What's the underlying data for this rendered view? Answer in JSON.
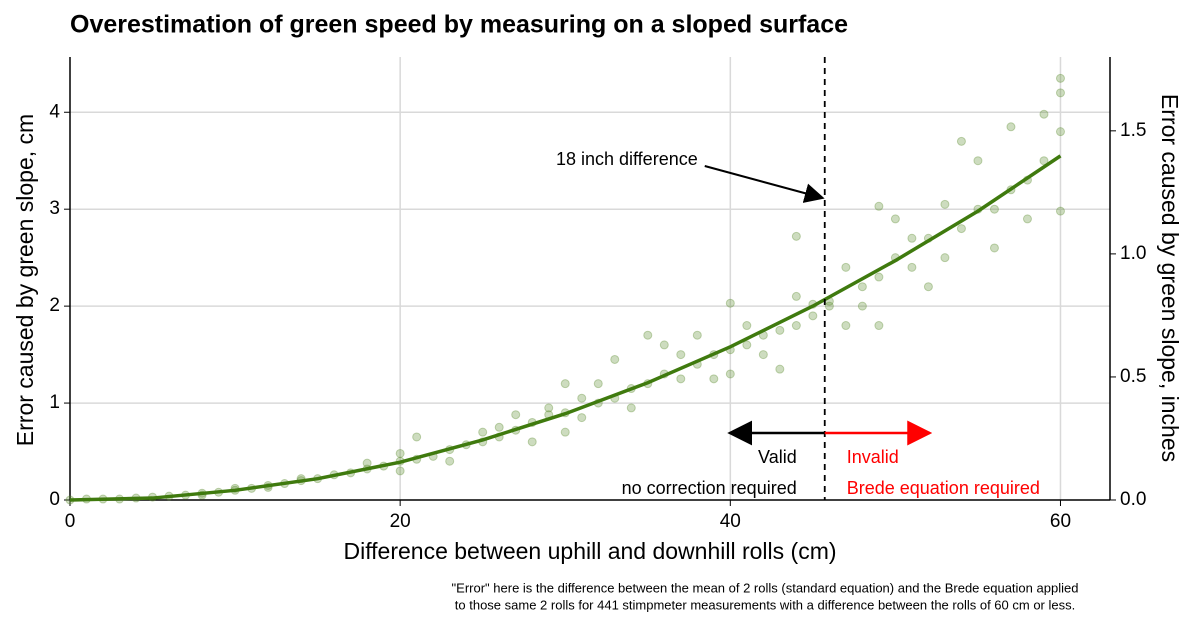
{
  "chart_data": {
    "type": "scatter",
    "title": "Overestimation of green speed by measuring on a sloped surface",
    "x_label": "Difference between uphill and downhill rolls (cm)",
    "y_label": "Error caused by green slope, cm",
    "y2_label": "Error caused by green slope, inches",
    "xlim": [
      0,
      63
    ],
    "ylim": [
      0,
      4.57
    ],
    "y2lim": [
      0,
      1.8
    ],
    "xticks": [
      0,
      20,
      40,
      60
    ],
    "yticks": [
      0,
      1,
      2,
      3,
      4
    ],
    "y2ticks": [
      {
        "value": 0,
        "label": "0.0"
      },
      0.5,
      {
        "value": 1,
        "label": "1.0"
      },
      1.5
    ],
    "grid": true,
    "point_color": "#5a8a2a",
    "line_color": "#3f7a0e",
    "points": {
      "x": [
        0,
        1,
        2,
        3,
        4,
        5,
        6,
        7,
        8,
        8,
        9,
        10,
        10,
        11,
        12,
        12,
        13,
        14,
        14,
        15,
        16,
        17,
        18,
        18,
        19,
        20,
        20,
        20,
        21,
        21,
        22,
        23,
        23,
        24,
        25,
        25,
        26,
        26,
        27,
        27,
        28,
        28,
        29,
        29,
        30,
        30,
        30,
        31,
        31,
        32,
        32,
        33,
        33,
        34,
        34,
        35,
        35,
        36,
        36,
        37,
        37,
        38,
        38,
        39,
        39,
        40,
        40,
        40,
        41,
        41,
        42,
        42,
        43,
        43,
        44,
        44,
        44,
        45,
        45,
        46,
        46,
        47,
        47,
        48,
        48,
        49,
        49,
        49,
        50,
        50,
        51,
        51,
        52,
        52,
        53,
        53,
        54,
        54,
        55,
        55,
        56,
        56,
        57,
        57,
        58,
        58,
        59,
        59,
        60,
        60,
        60,
        60
      ],
      "y": [
        0,
        0.01,
        0.01,
        0.01,
        0.02,
        0.03,
        0.04,
        0.05,
        0.07,
        0.05,
        0.08,
        0.1,
        0.12,
        0.12,
        0.15,
        0.13,
        0.17,
        0.2,
        0.22,
        0.22,
        0.26,
        0.28,
        0.32,
        0.38,
        0.35,
        0.4,
        0.48,
        0.3,
        0.42,
        0.65,
        0.45,
        0.52,
        0.4,
        0.57,
        0.6,
        0.7,
        0.65,
        0.75,
        0.72,
        0.88,
        0.8,
        0.6,
        0.88,
        0.95,
        0.9,
        1.2,
        0.7,
        1.05,
        0.85,
        1.0,
        1.2,
        1.05,
        1.45,
        1.15,
        0.95,
        1.2,
        1.7,
        1.3,
        1.6,
        1.25,
        1.5,
        1.4,
        1.7,
        1.5,
        1.25,
        1.55,
        2.03,
        1.3,
        1.6,
        1.8,
        1.7,
        1.5,
        1.75,
        1.35,
        1.8,
        2.1,
        2.72,
        1.9,
        2.02,
        2.0,
        2.05,
        1.8,
        2.4,
        2.2,
        2.0,
        2.3,
        3.03,
        1.8,
        2.5,
        2.9,
        2.4,
        2.7,
        2.7,
        2.2,
        2.5,
        3.05,
        2.8,
        3.7,
        3.0,
        3.5,
        3.0,
        2.6,
        3.2,
        3.85,
        3.3,
        2.9,
        3.5,
        3.98,
        3.8,
        4.35,
        2.98,
        4.2
      ]
    },
    "fit": {
      "x": [
        0,
        5,
        10,
        15,
        20,
        25,
        30,
        35,
        40,
        45,
        50,
        55,
        60
      ],
      "y": [
        0,
        0.02,
        0.1,
        0.22,
        0.39,
        0.62,
        0.89,
        1.21,
        1.58,
        2.0,
        2.47,
        2.98,
        3.55
      ]
    },
    "threshold": 45.72,
    "threshold_label": "18 inch difference",
    "regions": [
      {
        "label": "Valid",
        "sublabel": "no correction required",
        "color": "#000000"
      },
      {
        "label": "Invalid",
        "sublabel": "Brede equation required",
        "color": "#ff0000"
      }
    ],
    "note": [
      "\"Error\" here is the difference between the mean of 2 rolls (standard equation) and the Brede equation applied",
      "to those same 2 rolls for 441 stimpmeter measurements with a difference between the rolls of 60 cm or less."
    ]
  }
}
